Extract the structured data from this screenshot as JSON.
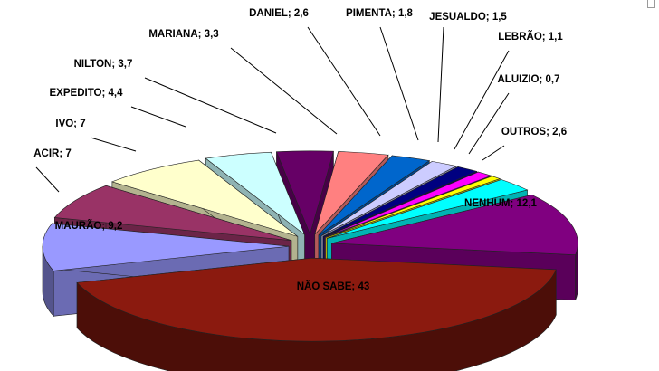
{
  "chart_data": {
    "type": "pie",
    "variant": "exploded-3d",
    "title": "",
    "legend": "none",
    "slices": [
      {
        "name": "NÃO SABE",
        "value": 43,
        "label": "NÃO SABE; 43",
        "color": "#8b1a0f"
      },
      {
        "name": "MAURÃO",
        "value": 9.2,
        "label": "MAURÃO; 9,2",
        "color": "#9999ff"
      },
      {
        "name": "ACIR",
        "value": 7,
        "label": "ACIR; 7",
        "color": "#993366"
      },
      {
        "name": "IVO",
        "value": 7,
        "label": "IVO; 7",
        "color": "#ffffcc"
      },
      {
        "name": "EXPEDITO",
        "value": 4.4,
        "label": "EXPEDITO; 4,4",
        "color": "#ccffff"
      },
      {
        "name": "NILTON",
        "value": 3.7,
        "label": "NILTON; 3,7",
        "color": "#660066"
      },
      {
        "name": "MARIANA",
        "value": 3.3,
        "label": "MARIANA; 3,3",
        "color": "#ff8080"
      },
      {
        "name": "DANIEL",
        "value": 2.6,
        "label": "DANIEL; 2,6",
        "color": "#0066cc"
      },
      {
        "name": "PIMENTA",
        "value": 1.8,
        "label": "PIMENTA; 1,8",
        "color": "#ccccff"
      },
      {
        "name": "JESUALDO",
        "value": 1.5,
        "label": "JESUALDO; 1,5",
        "color": "#000080"
      },
      {
        "name": "LEBRÃO",
        "value": 1.1,
        "label": "LEBRÃO; 1,1",
        "color": "#ff00ff"
      },
      {
        "name": "ALUIZIO",
        "value": 0.7,
        "label": "ALUIZIO; 0,7",
        "color": "#ffff00"
      },
      {
        "name": "OUTROS",
        "value": 2.6,
        "label": "OUTROS; 2,6",
        "color": "#00ffff"
      },
      {
        "name": "NENHUM",
        "value": 12.1,
        "label": "NENHUM; 12,1",
        "color": "#800080"
      }
    ]
  }
}
